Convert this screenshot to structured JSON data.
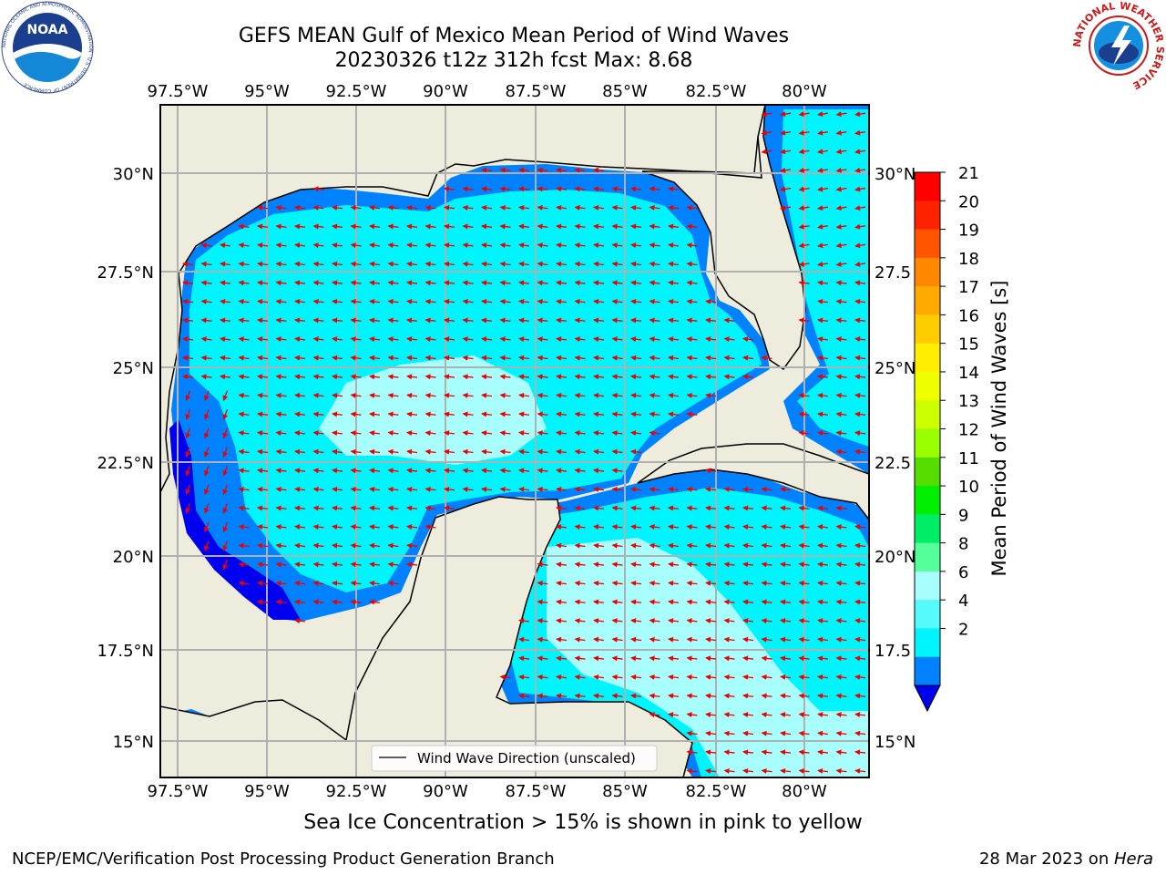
{
  "title": {
    "line1": "GEFS MEAN Gulf of Mexico Mean Period of Wind Waves",
    "line2": "20230326 t12z 312h fcst   Max: 8.68"
  },
  "logos": {
    "left": {
      "name": "noaa-logo",
      "text": "NOAA",
      "ring_text": "NATIONAL OCEANIC AND ATMOSPHERIC ADMINISTRATION · U.S. DEPARTMENT OF COMMERCE"
    },
    "right": {
      "name": "nws-logo",
      "ring_text": "NATIONAL WEATHER SERVICE"
    }
  },
  "map": {
    "lon_labels": [
      "97.5°W",
      "95°W",
      "92.5°W",
      "90°W",
      "87.5°W",
      "85°W",
      "82.5°W",
      "80°W"
    ],
    "lat_labels_left": [
      "30°N",
      "27.5°N",
      "25°N",
      "22.5°N",
      "20°N",
      "17.5°N",
      "15°N"
    ],
    "lat_labels_right": [
      "30°N",
      "27.5",
      "25°N",
      "22.5",
      "20°N",
      "17.5",
      "15°N"
    ],
    "legend_label": "Wind Wave Direction (unscaled)",
    "colors": {
      "land": "#eeecdc",
      "ocean_light": "#a8fdfd",
      "ocean_cyan": "#00f4fc",
      "ocean_blue": "#0082ff",
      "ocean_deep": "#0000ee",
      "arrow": "#ee0000"
    },
    "gridlines": true
  },
  "colorbar": {
    "label": "Mean Period of Wind Waves [s]",
    "ticks": [
      "21",
      "20",
      "19",
      "18",
      "17",
      "16",
      "15",
      "14",
      "13",
      "12",
      "11",
      "10",
      "9",
      "8",
      "6",
      "4",
      "2"
    ],
    "colors": [
      "#ff0000",
      "#ff2200",
      "#ff5500",
      "#ff8800",
      "#ffaa00",
      "#ffcc00",
      "#ffee00",
      "#f0ff00",
      "#ccff00",
      "#99ff00",
      "#55dd00",
      "#00ee00",
      "#00ee66",
      "#55ff99",
      "#a8fdfd",
      "#55fafa",
      "#00f4fc",
      "#0082ff"
    ],
    "extend_color": "#0000ee"
  },
  "ice_note": "Sea Ice Concentration > 15% is shown in pink to yellow",
  "footer": {
    "left": "NCEP/EMC/Verification Post Processing Product Generation Branch",
    "right_date": "28 Mar 2023 on ",
    "right_host": "Hera"
  }
}
